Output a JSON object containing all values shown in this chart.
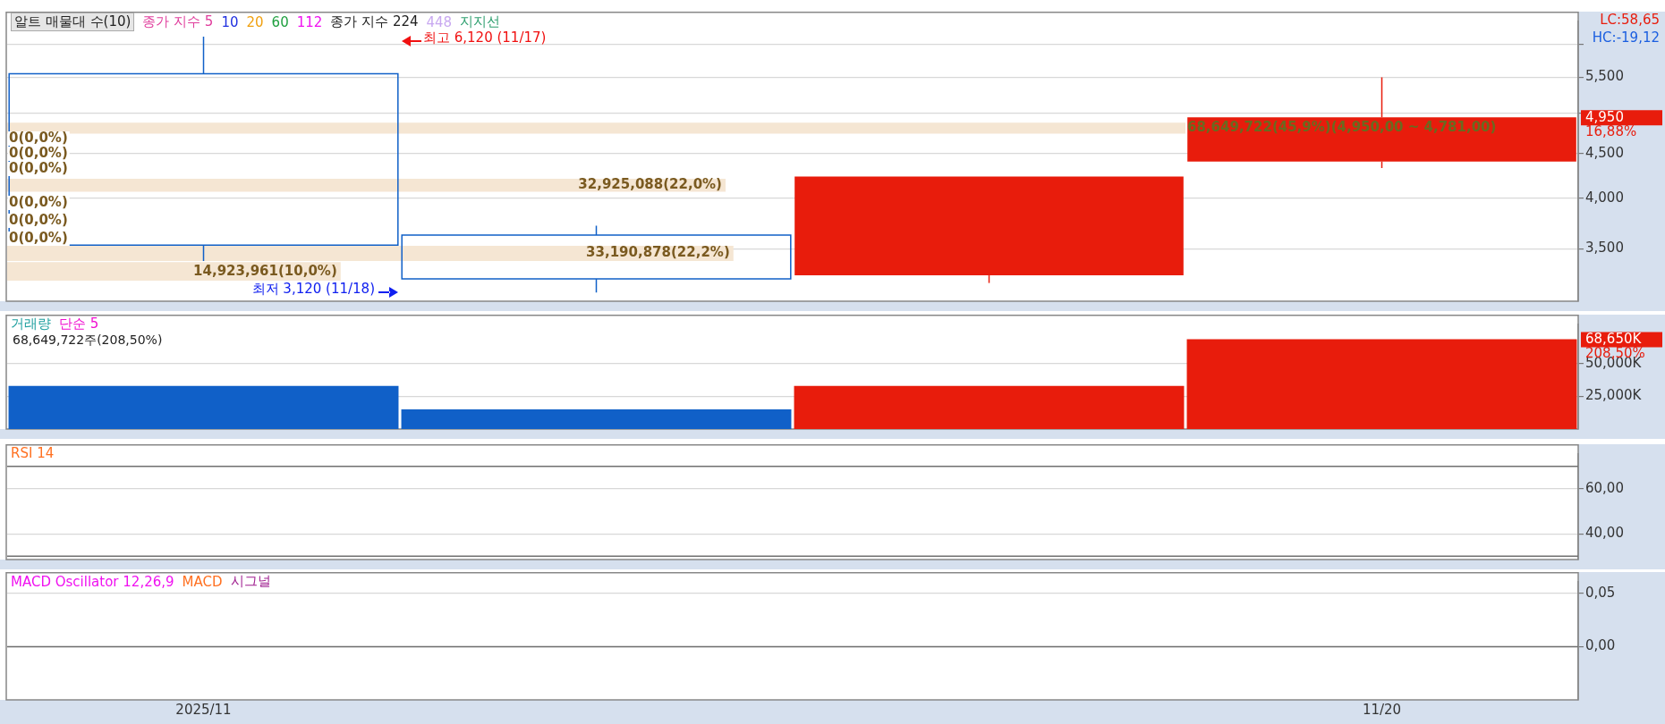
{
  "chart_data": [
    {
      "type": "candlestick",
      "legend_title": "알트 매물대 수(10)",
      "categories": [
        null,
        null,
        null,
        null
      ],
      "ohlc": [
        [
          5550,
          6120,
          3390,
          3535
        ],
        [
          3630,
          3720,
          3120,
          3235
        ],
        [
          3265,
          4235,
          3200,
          4235
        ],
        [
          4405,
          5500,
          4330,
          4950
        ]
      ],
      "colors": [
        "#1060c8",
        "#1060c8",
        "#e81c0c",
        "#e81c0c"
      ],
      "series": [
        {
          "name": "종가 지수 5",
          "type": "line",
          "color": "#e03c9c",
          "values": [
            null,
            null,
            null,
            null
          ]
        },
        {
          "name": "10",
          "type": "line",
          "color": "#2030e0",
          "values": [
            null,
            null,
            null,
            null
          ]
        },
        {
          "name": "20",
          "type": "line",
          "color": "#f0a010",
          "values": [
            null,
            null,
            null,
            null
          ]
        },
        {
          "name": "60",
          "type": "line",
          "color": "#20a040",
          "values": [
            null,
            null,
            null,
            null
          ]
        },
        {
          "name": "112",
          "type": "line",
          "color": "#f010f0",
          "values": [
            null,
            null,
            null,
            null
          ]
        },
        {
          "name": "종가 지수 224",
          "type": "line",
          "color": "#202020",
          "values": [
            null,
            null,
            null,
            null
          ]
        },
        {
          "name": "448",
          "type": "line",
          "color": "#c8a8f0",
          "values": [
            null,
            null,
            null,
            null
          ]
        },
        {
          "name": "지지선",
          "type": "line",
          "color": "#30a070",
          "values": [
            null,
            null,
            null,
            null
          ]
        }
      ],
      "log": "y",
      "ylim": [
        3050,
        6370
      ],
      "yticks": [
        {
          "value": 3500,
          "label": "3,500"
        },
        {
          "value": 4000,
          "label": "4,000"
        },
        {
          "value": 4500,
          "label": "4,500"
        },
        {
          "value": 5000,
          "label": null
        },
        {
          "value": 5500,
          "label": "5,500"
        },
        {
          "value": 6000,
          "label": null
        }
      ],
      "grid": "y",
      "tick_labels": "y",
      "bands": [
        {
          "axis": "y",
          "from": 4740,
          "to": 4880,
          "label": "68,649,722(45,9%)(4,950,00 ~ 4,781,00)",
          "color": "#f5e6d3"
        },
        {
          "axis": "y",
          "from": 4070,
          "to": 4210,
          "label": "32,925,088(22,0%)",
          "color": "#f5e6d3"
        },
        {
          "axis": "y",
          "from": 3390,
          "to": 3530,
          "label": "33,190,878(22,2%)",
          "color": "#f5e6d3"
        },
        {
          "axis": "y",
          "from": 3220,
          "to": 3380,
          "label": "14,923,961(10,0%)",
          "color": "#f5e6d3"
        }
      ],
      "annotations": [
        "최고 6,120 (11/17)",
        "최저 3,120 (11/18)",
        "0(0,0%)",
        "0(0,0%)",
        "0(0,0%)",
        "0(0,0%)",
        "0(0,0%)",
        "0(0,0%)",
        "LC:58,65",
        "HC:-19,12",
        "4,950",
        "16,88%"
      ]
    },
    {
      "type": "bar",
      "title": "거래량",
      "subtitle": "68,649,722주(208,50%)",
      "categories": [
        null,
        null,
        null,
        null
      ],
      "series": [
        {
          "type": "bar",
          "values": [
            33000,
            15000,
            33000,
            68650
          ],
          "colors": [
            "#1060c8",
            "#1060c8",
            "#e81c0c",
            "#e81c0c"
          ]
        },
        {
          "name": "단순 5",
          "type": "line",
          "color": "#f010d0",
          "values": [
            null,
            null,
            null,
            null
          ]
        }
      ],
      "ylim": [
        0,
        80000
      ],
      "yticks": [
        {
          "value": 25000,
          "label": "25,000K"
        },
        {
          "value": 50000,
          "label": "50,000K"
        }
      ],
      "grid": "y",
      "tick_labels": "y",
      "annotations": [
        "68,650K",
        "208,50%"
      ]
    },
    {
      "type": "line",
      "categories": [
        null,
        null,
        null,
        null
      ],
      "series": [
        {
          "name": "RSI 14",
          "color": "#ff7020",
          "values": [
            null,
            null,
            null,
            null
          ]
        }
      ],
      "ylim": [
        28.5,
        75.5
      ],
      "yticks": [
        {
          "value": 40,
          "label": "40,00"
        },
        {
          "value": 60,
          "label": "60,00"
        }
      ],
      "grid": "y",
      "tick_labels": "y",
      "ref_lines": [
        {
          "axis": "y",
          "value": 70,
          "color": "#707070"
        },
        {
          "axis": "y",
          "value": 30,
          "color": "#707070"
        }
      ]
    },
    {
      "type": "line",
      "categories": [
        "2025/11",
        null,
        null,
        "11/20"
      ],
      "series": [
        {
          "name": "MACD Oscillator 12,26,9",
          "color": "#f010f0",
          "values": [
            null,
            null,
            null,
            null
          ]
        },
        {
          "name": "MACD",
          "color": "#ff7020",
          "values": [
            null,
            null,
            null,
            null
          ]
        },
        {
          "name": "시그널",
          "color": "#a02090",
          "values": [
            null,
            null,
            null,
            null
          ]
        }
      ],
      "ylim": [
        -0.05,
        0.061
      ],
      "yticks": [
        {
          "value": 0,
          "label": "0,00"
        },
        {
          "value": 0.05,
          "label": "0,05"
        }
      ],
      "grid": "y",
      "ref_lines": [
        {
          "axis": "y",
          "value": 0,
          "color": "#707070"
        }
      ]
    }
  ]
}
